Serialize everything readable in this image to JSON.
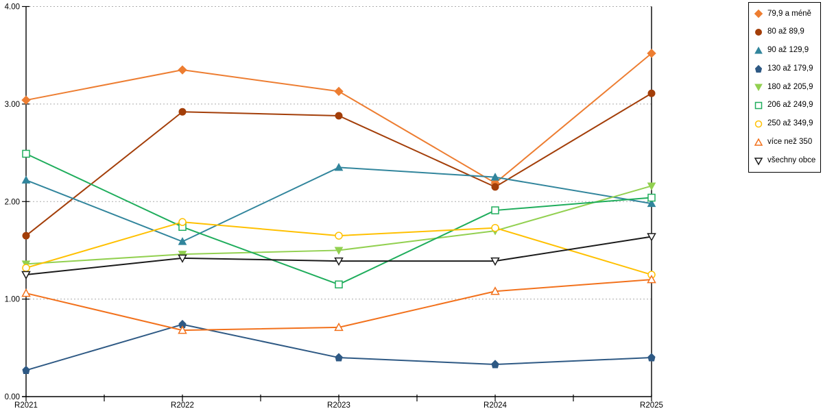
{
  "chart_data": {
    "type": "line",
    "title": "",
    "xlabel": "",
    "ylabel": "",
    "categories": [
      "R2021",
      "R2022",
      "R2023",
      "R2024",
      "R2025"
    ],
    "series": [
      {
        "name": "79,9 a méně",
        "marker": "diamond",
        "fill": "solid",
        "color": "#ED7D31",
        "values": [
          3.04,
          3.35,
          3.13,
          2.19,
          3.52
        ]
      },
      {
        "name": "80 až 89,9",
        "marker": "circle",
        "fill": "solid",
        "color": "#A33E09",
        "values": [
          1.65,
          2.92,
          2.88,
          2.15,
          3.11
        ]
      },
      {
        "name": "90 až 129,9",
        "marker": "triangle-up",
        "fill": "solid",
        "color": "#31859C",
        "values": [
          2.22,
          1.59,
          2.35,
          2.25,
          1.98
        ]
      },
      {
        "name": "130 až 179,9",
        "marker": "pentagon",
        "fill": "solid",
        "color": "#2E5984",
        "values": [
          0.27,
          0.74,
          0.4,
          0.33,
          0.4
        ]
      },
      {
        "name": "180 až 205,9",
        "marker": "triangle-down",
        "fill": "solid",
        "color": "#92D050",
        "values": [
          1.36,
          1.46,
          1.5,
          1.7,
          2.16
        ]
      },
      {
        "name": "206 až 249,9",
        "marker": "square",
        "fill": "open",
        "color": "#1FAD5C",
        "values": [
          2.49,
          1.74,
          1.15,
          1.91,
          2.04
        ]
      },
      {
        "name": "250 až 349,9",
        "marker": "circle",
        "fill": "open",
        "color": "#FFC000",
        "values": [
          1.32,
          1.79,
          1.65,
          1.73,
          1.25
        ]
      },
      {
        "name": "více než 350",
        "marker": "triangle-up",
        "fill": "open",
        "color": "#F2711C",
        "values": [
          1.06,
          0.68,
          0.71,
          1.08,
          1.2
        ]
      },
      {
        "name": "všechny obce",
        "marker": "triangle-down",
        "fill": "open",
        "color": "#1A1A1A",
        "values": [
          1.25,
          1.42,
          1.39,
          1.39,
          1.64
        ]
      }
    ],
    "y_axis": {
      "min": 0,
      "max": 4,
      "step": 1,
      "tick_labels": [
        "0.00",
        "1.00",
        "2.00",
        "3.00",
        "4.00"
      ]
    },
    "x_axis": {
      "tick_labels": [
        "R2021",
        "R2022",
        "R2023",
        "R2024",
        "R2025"
      ]
    },
    "grid": true,
    "gridline_color": "#ABABAB",
    "axis_color": "#000000",
    "legend_position": "top-right"
  }
}
